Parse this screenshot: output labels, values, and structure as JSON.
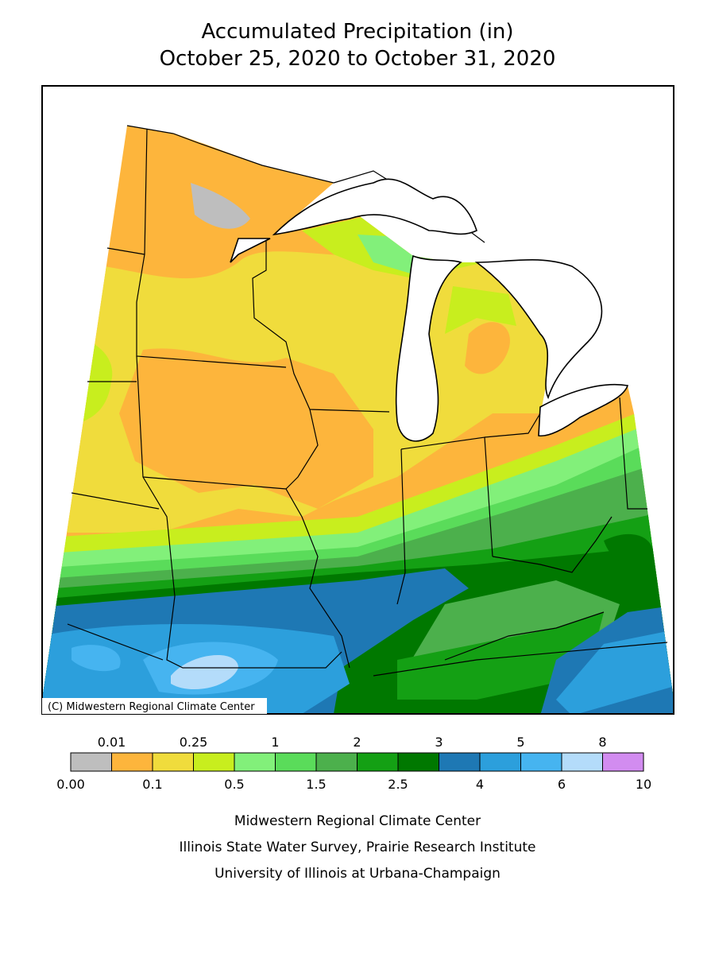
{
  "title": [
    "Accumulated Precipitation (in)",
    "October 25, 2020 to October 31, 2020"
  ],
  "copyright": "(C) Midwestern Regional Climate Center",
  "legend": {
    "colors": [
      "#bebebe",
      "#fdb53c",
      "#f0dc3c",
      "#c8ee1e",
      "#82f07a",
      "#5adc5a",
      "#4cb04c",
      "#14a014",
      "#007800",
      "#1e78b4",
      "#2c9fdc",
      "#46b4f0",
      "#b4dcfa",
      "#d28cf0"
    ],
    "labels": [
      "0.00",
      "0.01",
      "0.1",
      "0.25",
      "0.5",
      "1",
      "1.5",
      "2",
      "2.5",
      "3",
      "4",
      "5",
      "6",
      "8",
      "10"
    ]
  },
  "footer": [
    "Midwestern Regional Climate Center",
    "Illinois State Water Survey, Prairie Research Institute",
    "University of Illinois at Urbana-Champaign"
  ]
}
